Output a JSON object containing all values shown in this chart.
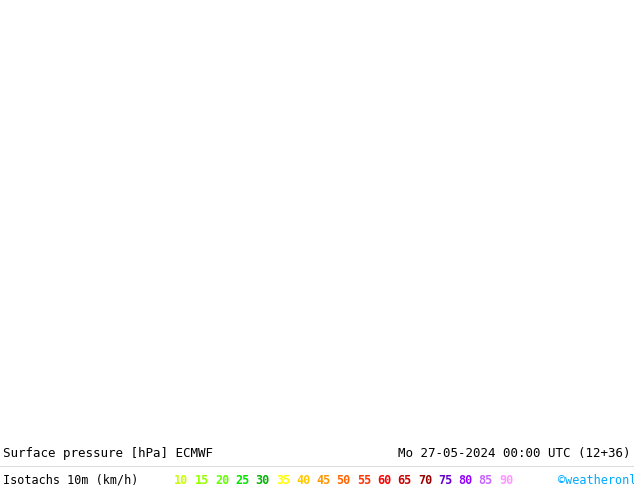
{
  "title_left": "Surface pressure [hPa] ECMWF",
  "title_right": "Mo 27-05-2024 00:00 UTC (12+36)",
  "legend_label": "Isotachs 10m (km/h)",
  "copyright": "©weatheronline.co.uk",
  "isotach_values": [
    10,
    15,
    20,
    25,
    30,
    35,
    40,
    45,
    50,
    55,
    60,
    65,
    70,
    75,
    80,
    85,
    90
  ],
  "isotach_colors": [
    "#c8ff00",
    "#96ff00",
    "#64ff00",
    "#00e600",
    "#00b400",
    "#ffff00",
    "#ffc800",
    "#ff9600",
    "#ff6400",
    "#ff3200",
    "#ff0000",
    "#c80000",
    "#960000",
    "#6400c8",
    "#9600ff",
    "#c864ff",
    "#ff96ff"
  ],
  "bg_color": "#ffffff",
  "map_bg": "#d4e8a0",
  "title_fontsize": 9,
  "legend_fontsize": 8.5,
  "fig_width": 6.34,
  "fig_height": 4.9,
  "dpi": 100
}
